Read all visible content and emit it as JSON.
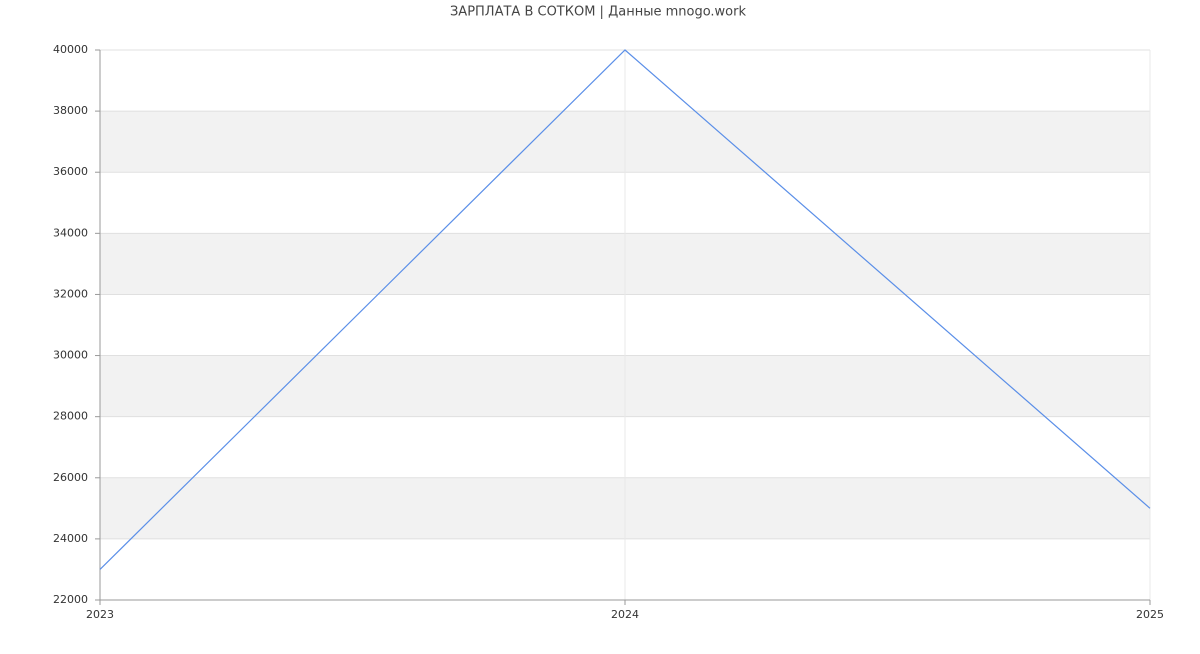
{
  "chart_data": {
    "type": "line",
    "title": "ЗАРПЛАТА В СОТКОМ | Данные mnogo.work",
    "x": [
      2023,
      2024,
      2025
    ],
    "series": [
      {
        "color": "#5b8fe8",
        "values": [
          23000,
          40000,
          25000
        ]
      }
    ],
    "xlim": [
      2023,
      2025
    ],
    "xticks": [
      2023,
      2024,
      2025
    ],
    "ylim": [
      22000,
      40000
    ],
    "yticks": [
      22000,
      24000,
      26000,
      28000,
      30000,
      32000,
      34000,
      36000,
      38000,
      40000
    ],
    "grid": true,
    "striped_bands": true
  }
}
